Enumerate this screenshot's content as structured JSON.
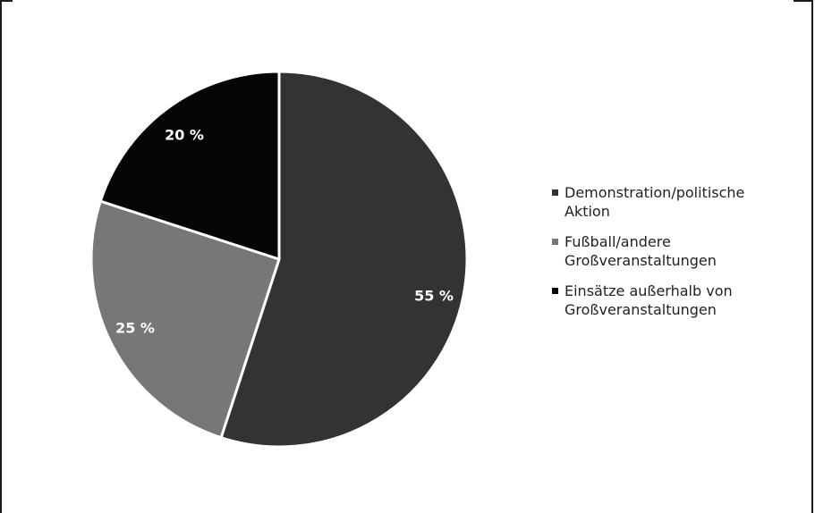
{
  "chart_data": {
    "type": "pie",
    "title": "",
    "slices": [
      {
        "label": "Demonstration/politische Aktion",
        "legend_lines": [
          "Demonstration/politische",
          "Aktion"
        ],
        "value": 55,
        "value_label": "55 %",
        "color": "#333333"
      },
      {
        "label": "Fußball/andere Großveranstaltungen",
        "legend_lines": [
          "Fußball/andere",
          "Großveranstaltungen"
        ],
        "value": 25,
        "value_label": "25 %",
        "color": "#777777"
      },
      {
        "label": "Einsätze außerhalb von Großveranstaltungen",
        "legend_lines": [
          "Einsätze außerhalb von",
          "Großveranstaltungen"
        ],
        "value": 20,
        "value_label": "20 %",
        "color": "#050505"
      }
    ],
    "legend_position": "right",
    "label_color": "#ffffff",
    "slice_border_color": "#ffffff"
  }
}
